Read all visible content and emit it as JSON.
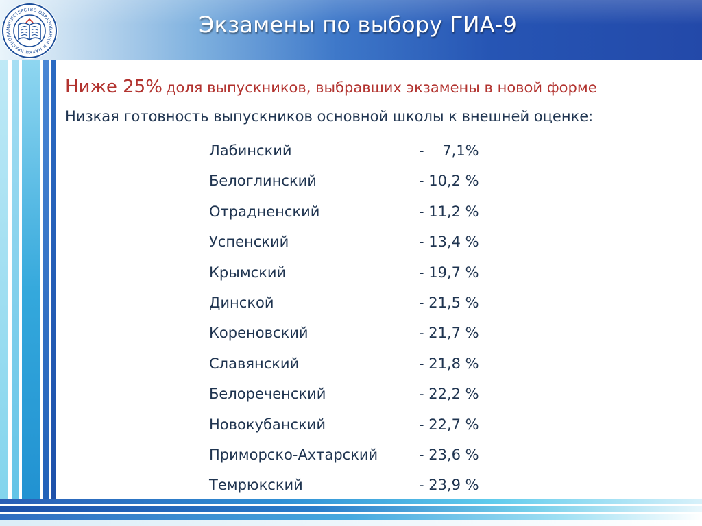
{
  "header": {
    "title": "Экзамены по выбору ГИА-9",
    "logo_text": "МИНИСТЕРСТВО ОБРАЗОВАНИЯ И НАУКИ КРАСНОДАРСКОГО КРАЯ"
  },
  "content": {
    "headline_strong": "Ниже 25%",
    "headline_rest": "доля выпускников, выбравших экзамены в новой форме",
    "subhead": "Низкая готовность выпускников основной школы к внешней оценке:",
    "districts": [
      {
        "name": "Лабинский",
        "value": "-    7,1%"
      },
      {
        "name": "Белоглинский",
        "value": "- 10,2 %"
      },
      {
        "name": "Отрадненский",
        "value": "- 11,2 %"
      },
      {
        "name": "Успенский",
        "value": "- 13,4 %"
      },
      {
        "name": "Крымский",
        "value": "- 19,7 %"
      },
      {
        "name": "Динской",
        "value": "- 21,5 %"
      },
      {
        "name": "Кореновский",
        "value": "- 21,7 %"
      },
      {
        "name": "Славянский",
        "value": "- 21,8 %"
      },
      {
        "name": "Белореченский",
        "value": "- 22,2 %"
      },
      {
        "name": "Новокубанский",
        "value": "- 22,7 %"
      },
      {
        "name": "Приморско-Ахтарский",
        "value": "- 23,6 %"
      },
      {
        "name": "Темрюкский",
        "value": "- 23,9 %"
      }
    ]
  },
  "colors": {
    "header_blue": "#2655b4",
    "headline_red": "#b2332f",
    "body_text": "#1f3450"
  },
  "icons": {
    "logo": "book-emblem-icon"
  }
}
